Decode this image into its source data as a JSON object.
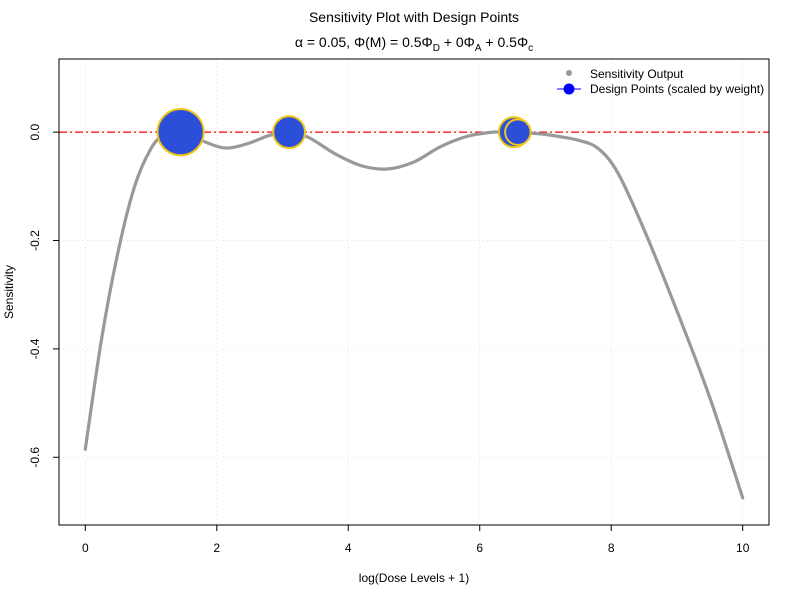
{
  "chart_data": {
    "type": "line",
    "title": "Sensitivity Plot with Design Points",
    "subtitle": {
      "alpha_prefix": "α = 0.05, Φ(M) = 0.5Φ",
      "sub_D": "D",
      "mid1": " + 0Φ",
      "sub_A": "A",
      "mid2": " + 0.5Φ",
      "sub_c": "c"
    },
    "xlabel": "log(Dose Levels + 1)",
    "ylabel": "Sensitivity",
    "xlim": [
      -0.4,
      10.4
    ],
    "ylim": [
      -0.725,
      0.135
    ],
    "x_ticks": [
      0,
      2,
      4,
      6,
      8,
      10
    ],
    "y_ticks": [
      -0.6,
      -0.4,
      -0.2,
      0.0
    ],
    "x_tick_labels": [
      "0",
      "2",
      "4",
      "6",
      "8",
      "10"
    ],
    "y_tick_labels": [
      "-0.6",
      "-0.4",
      "-0.2",
      "0.0"
    ],
    "grid": true,
    "reference_line": {
      "y": 0.0,
      "color": "#ff0000",
      "style": "dash-dot"
    },
    "legend": {
      "position": "top-right",
      "items": [
        {
          "label": "Sensitivity Output",
          "color": "#999999",
          "marker": "dot"
        },
        {
          "label": "Design Points (scaled by weight)",
          "color": "#0000ff",
          "marker": "circle-line"
        }
      ]
    },
    "series": [
      {
        "name": "Sensitivity Output",
        "color": "#999999",
        "x": [
          0,
          0.25,
          0.5,
          0.75,
          1.0,
          1.2,
          1.45,
          1.7,
          2.0,
          2.2,
          2.5,
          2.8,
          3.1,
          3.4,
          3.8,
          4.2,
          4.6,
          5.0,
          5.4,
          5.8,
          6.2,
          6.5,
          6.9,
          7.2,
          7.5,
          7.8,
          8.1,
          8.5,
          9.0,
          9.5,
          10.0
        ],
        "y": [
          -0.585,
          -0.38,
          -0.22,
          -0.1,
          -0.03,
          -0.005,
          0.0,
          -0.012,
          -0.026,
          -0.029,
          -0.02,
          -0.006,
          0.0,
          -0.01,
          -0.04,
          -0.062,
          -0.068,
          -0.055,
          -0.027,
          -0.008,
          0.0,
          0.0,
          -0.003,
          -0.008,
          -0.015,
          -0.03,
          -0.075,
          -0.18,
          -0.33,
          -0.49,
          -0.675
        ]
      },
      {
        "name": "Design Points (scaled by weight)",
        "color": "#0000ff",
        "points": [
          {
            "x": 1.45,
            "y": 0.0,
            "weight": 0.38
          },
          {
            "x": 3.1,
            "y": 0.0,
            "weight": 0.22
          },
          {
            "x": 6.52,
            "y": 0.0,
            "weight": 0.2
          },
          {
            "x": 6.58,
            "y": 0.0,
            "weight": 0.15
          }
        ]
      }
    ],
    "design_point_fill": "#2b4fd8",
    "design_point_stroke": "#f0c419"
  }
}
